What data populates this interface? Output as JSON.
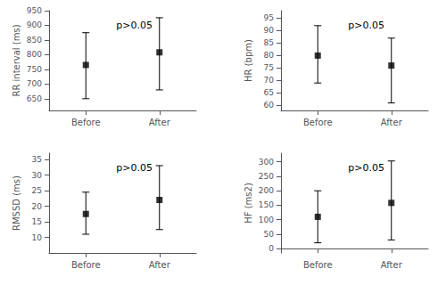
{
  "chart_data": [
    {
      "type": "errorbar",
      "ylabel": "RR interval (ms)",
      "categories": [
        "Before",
        "After"
      ],
      "values": [
        765,
        808
      ],
      "errors_low": [
        115,
        128
      ],
      "errors_high": [
        110,
        118
      ],
      "ylim": [
        610,
        950
      ],
      "yticks": [
        650,
        700,
        750,
        800,
        850,
        900,
        950
      ],
      "annotation": "p>0.05",
      "marker": "square",
      "color": "black",
      "grid": false
    },
    {
      "type": "errorbar",
      "ylabel": "HR (bpm)",
      "categories": [
        "Before",
        "After"
      ],
      "values": [
        80,
        76
      ],
      "errors_low": [
        11,
        15
      ],
      "errors_high": [
        12,
        11
      ],
      "ylim": [
        58,
        98
      ],
      "yticks": [
        60,
        65,
        70,
        75,
        80,
        85,
        90,
        95
      ],
      "annotation": "p>0.05",
      "marker": "square",
      "color": "black",
      "grid": false
    },
    {
      "type": "errorbar",
      "ylabel": "RMSSD (ms)",
      "categories": [
        "Before",
        "After"
      ],
      "values": [
        17.5,
        22
      ],
      "errors_low": [
        6.5,
        9.5
      ],
      "errors_high": [
        7,
        11
      ],
      "ylim": [
        5,
        37
      ],
      "yticks": [
        10,
        15,
        20,
        25,
        30,
        35
      ],
      "annotation": "p>0.05",
      "marker": "square",
      "color": "black",
      "grid": false
    },
    {
      "type": "errorbar",
      "ylabel": "HF (ms2)",
      "categories": [
        "Before",
        "After"
      ],
      "values": [
        110,
        158
      ],
      "errors_low": [
        90,
        128
      ],
      "errors_high": [
        90,
        145
      ],
      "ylim": [
        -15,
        330
      ],
      "yticks": [
        0,
        50,
        100,
        150,
        200,
        250,
        300
      ],
      "annotation": "p>0.05",
      "marker": "square",
      "color": "black",
      "grid": false
    }
  ]
}
